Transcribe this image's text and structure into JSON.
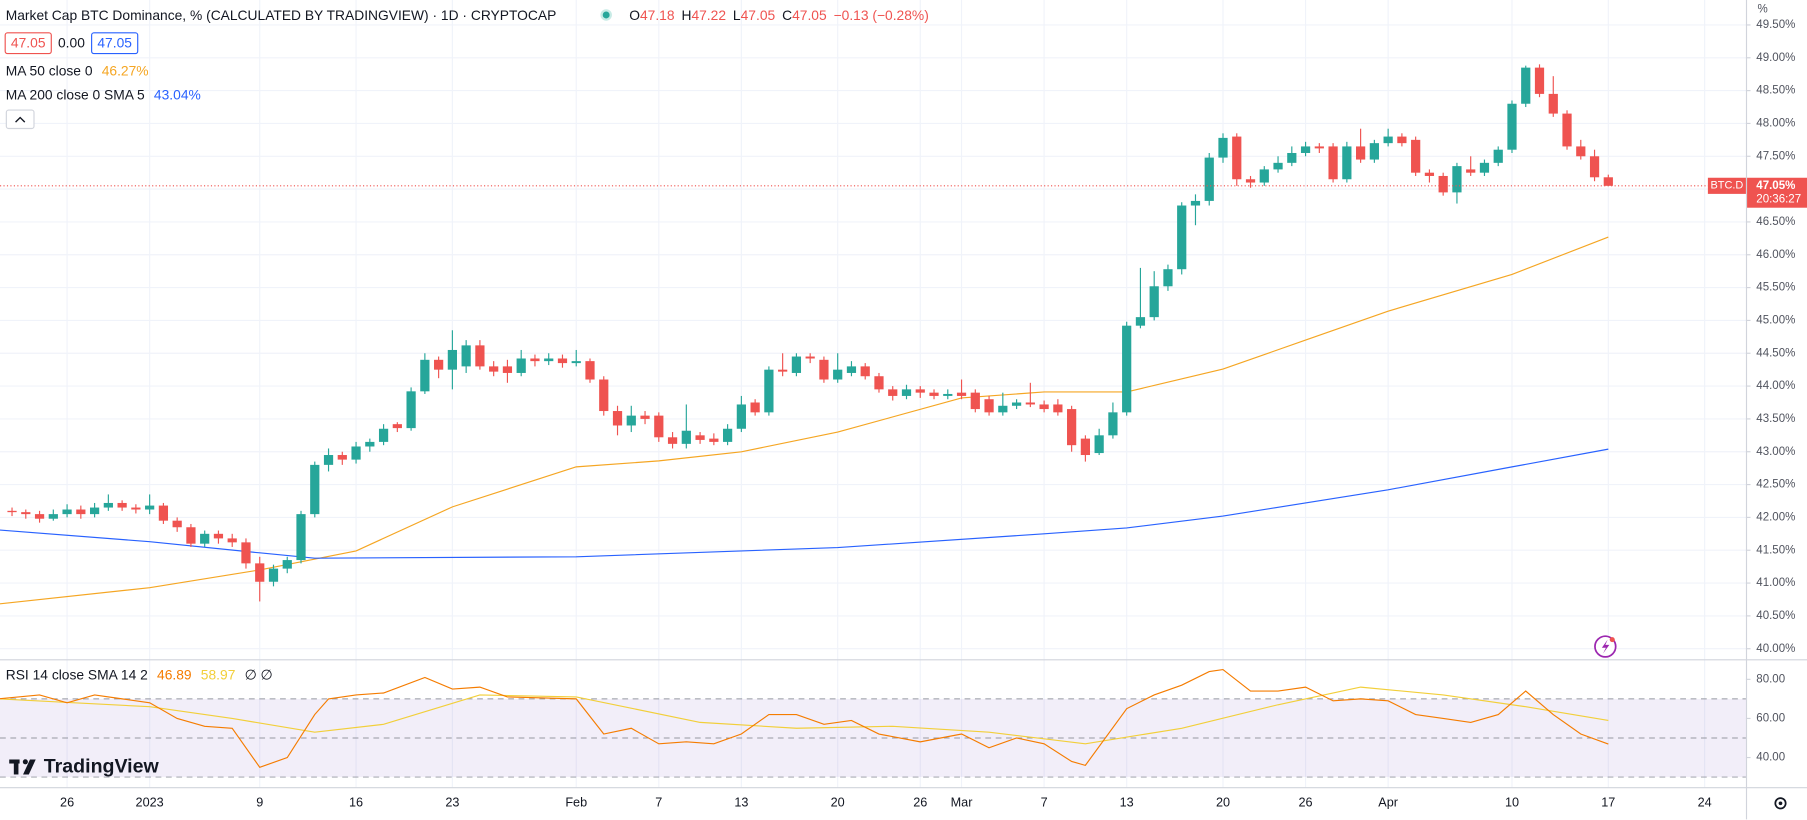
{
  "header": {
    "title": "Market Cap BTC Dominance, % (CALCULATED BY TRADINGVIEW) · 1D · CRYPTOCAP",
    "ohlc": [
      {
        "key": "O",
        "value": "47.18"
      },
      {
        "key": "H",
        "value": "47.22"
      },
      {
        "key": "L",
        "value": "47.05"
      },
      {
        "key": "C",
        "value": "47.05"
      }
    ],
    "change": "−0.13 (−0.28%)",
    "boxes": [
      "47.05",
      "0.00",
      "47.05"
    ],
    "brand": "TradingView"
  },
  "chart_data": [
    {
      "type": "candlestick",
      "name": "BTC.D",
      "up_color": "#26a69a",
      "down_color": "#ef5350",
      "x": [
        "2022-12-22",
        "2022-12-23",
        "2022-12-24",
        "2022-12-25",
        "2022-12-26",
        "2022-12-27",
        "2022-12-28",
        "2022-12-29",
        "2022-12-30",
        "2022-12-31",
        "2023-01-01",
        "2023-01-02",
        "2023-01-03",
        "2023-01-04",
        "2023-01-05",
        "2023-01-06",
        "2023-01-07",
        "2023-01-08",
        "2023-01-09",
        "2023-01-10",
        "2023-01-11",
        "2023-01-12",
        "2023-01-13",
        "2023-01-14",
        "2023-01-15",
        "2023-01-16",
        "2023-01-17",
        "2023-01-18",
        "2023-01-19",
        "2023-01-20",
        "2023-01-21",
        "2023-01-22",
        "2023-01-23",
        "2023-01-24",
        "2023-01-25",
        "2023-01-26",
        "2023-01-27",
        "2023-01-28",
        "2023-01-29",
        "2023-01-30",
        "2023-01-31",
        "2023-02-01",
        "2023-02-02",
        "2023-02-03",
        "2023-02-04",
        "2023-02-05",
        "2023-02-06",
        "2023-02-07",
        "2023-02-08",
        "2023-02-09",
        "2023-02-10",
        "2023-02-11",
        "2023-02-12",
        "2023-02-13",
        "2023-02-14",
        "2023-02-15",
        "2023-02-16",
        "2023-02-17",
        "2023-02-18",
        "2023-02-19",
        "2023-02-20",
        "2023-02-21",
        "2023-02-22",
        "2023-02-23",
        "2023-02-24",
        "2023-02-25",
        "2023-02-26",
        "2023-02-27",
        "2023-02-28",
        "2023-03-01",
        "2023-03-02",
        "2023-03-03",
        "2023-03-04",
        "2023-03-05",
        "2023-03-06",
        "2023-03-07",
        "2023-03-08",
        "2023-03-09",
        "2023-03-10",
        "2023-03-11",
        "2023-03-12",
        "2023-03-13",
        "2023-03-14",
        "2023-03-15",
        "2023-03-16",
        "2023-03-17",
        "2023-03-18",
        "2023-03-19",
        "2023-03-20",
        "2023-03-21",
        "2023-03-22",
        "2023-03-23",
        "2023-03-24",
        "2023-03-25",
        "2023-03-26",
        "2023-03-27",
        "2023-03-28",
        "2023-03-29",
        "2023-03-30",
        "2023-03-31",
        "2023-04-01",
        "2023-04-02",
        "2023-04-03",
        "2023-04-04",
        "2023-04-05",
        "2023-04-06",
        "2023-04-07",
        "2023-04-08",
        "2023-04-09",
        "2023-04-10",
        "2023-04-11",
        "2023-04-12",
        "2023-04-13",
        "2023-04-14",
        "2023-04-15",
        "2023-04-16",
        "2023-04-17"
      ],
      "open": [
        42.1,
        42.08,
        42.05,
        41.98,
        42.05,
        42.12,
        42.05,
        42.15,
        42.22,
        42.15,
        42.12,
        42.18,
        41.95,
        41.85,
        41.6,
        41.75,
        41.68,
        41.62,
        41.3,
        41.02,
        41.22,
        41.35,
        42.05,
        42.8,
        42.95,
        42.88,
        43.08,
        43.15,
        43.42,
        43.36,
        43.92,
        44.4,
        44.25,
        44.3,
        44.62,
        44.3,
        44.3,
        44.2,
        44.42,
        44.38,
        44.42,
        44.35,
        44.38,
        44.1,
        43.62,
        43.4,
        43.55,
        43.55,
        43.22,
        43.12,
        43.25,
        43.2,
        43.15,
        43.35,
        43.75,
        43.6,
        44.25,
        44.2,
        44.45,
        44.4,
        44.1,
        44.2,
        44.3,
        44.15,
        43.95,
        43.85,
        43.95,
        43.9,
        43.85,
        43.9,
        43.9,
        43.8,
        43.6,
        43.7,
        43.75,
        43.72,
        43.72,
        43.65,
        43.2,
        42.98,
        43.25,
        43.6,
        44.92,
        45.05,
        45.52,
        45.78,
        46.75,
        46.82,
        47.48,
        47.8,
        47.15,
        47.1,
        47.3,
        47.4,
        47.55,
        47.65,
        47.65,
        47.15,
        47.65,
        47.45,
        47.7,
        47.8,
        47.75,
        47.25,
        47.2,
        46.95,
        47.3,
        47.25,
        47.4,
        47.6,
        48.3,
        48.85,
        48.45,
        48.15,
        47.65,
        47.5,
        47.18
      ],
      "high": [
        42.15,
        42.12,
        42.1,
        42.12,
        42.2,
        42.18,
        42.22,
        42.35,
        42.26,
        42.2,
        42.35,
        42.22,
        42.0,
        41.9,
        41.8,
        41.8,
        41.75,
        41.68,
        41.4,
        41.28,
        41.4,
        42.1,
        42.85,
        43.05,
        43.0,
        43.15,
        43.2,
        43.42,
        43.45,
        43.98,
        44.5,
        44.45,
        44.85,
        44.7,
        44.7,
        44.38,
        44.4,
        44.55,
        44.48,
        44.5,
        44.48,
        44.55,
        44.42,
        44.15,
        43.7,
        43.7,
        43.62,
        43.6,
        43.3,
        43.72,
        43.3,
        43.28,
        43.42,
        43.85,
        43.8,
        44.3,
        44.5,
        44.5,
        44.5,
        44.45,
        44.5,
        44.38,
        44.35,
        44.2,
        44.0,
        44.02,
        44.0,
        43.95,
        43.95,
        44.1,
        43.95,
        43.85,
        43.9,
        43.8,
        44.05,
        43.78,
        43.8,
        43.7,
        43.25,
        43.35,
        43.75,
        44.98,
        45.8,
        45.75,
        45.85,
        46.8,
        46.92,
        47.55,
        47.85,
        47.85,
        47.2,
        47.35,
        47.5,
        47.65,
        47.72,
        47.7,
        47.7,
        47.72,
        47.92,
        47.75,
        47.92,
        47.85,
        47.8,
        47.3,
        47.25,
        47.4,
        47.5,
        47.45,
        47.65,
        48.35,
        48.88,
        48.9,
        48.72,
        48.2,
        47.75,
        47.6,
        47.22
      ],
      "low": [
        42.02,
        41.98,
        41.92,
        41.95,
        42.0,
        41.98,
        42.0,
        42.1,
        42.1,
        42.06,
        42.05,
        41.9,
        41.78,
        41.55,
        41.55,
        41.6,
        41.55,
        41.22,
        40.72,
        40.95,
        41.15,
        41.3,
        42.0,
        42.7,
        42.8,
        42.82,
        43.0,
        43.1,
        43.3,
        43.32,
        43.88,
        44.12,
        43.95,
        44.2,
        44.25,
        44.15,
        44.05,
        44.15,
        44.3,
        44.32,
        44.28,
        44.3,
        44.05,
        43.55,
        43.25,
        43.3,
        43.42,
        43.15,
        43.05,
        43.05,
        43.12,
        43.1,
        43.1,
        43.3,
        43.55,
        43.55,
        44.15,
        44.15,
        44.35,
        44.05,
        44.05,
        44.15,
        44.1,
        43.9,
        43.78,
        43.8,
        43.82,
        43.8,
        43.8,
        43.8,
        43.6,
        43.55,
        43.55,
        43.65,
        43.68,
        43.6,
        43.55,
        43.0,
        42.85,
        42.95,
        43.2,
        43.55,
        44.88,
        45.0,
        45.45,
        45.7,
        46.45,
        46.75,
        47.4,
        47.05,
        47.02,
        47.05,
        47.25,
        47.35,
        47.5,
        47.55,
        47.1,
        47.1,
        47.4,
        47.4,
        47.65,
        47.65,
        47.2,
        47.1,
        46.9,
        46.78,
        47.2,
        47.2,
        47.35,
        47.55,
        48.25,
        48.4,
        48.1,
        47.6,
        47.45,
        47.12,
        47.05
      ],
      "close": [
        42.08,
        42.05,
        41.98,
        42.05,
        42.12,
        42.05,
        42.15,
        42.22,
        42.15,
        42.12,
        42.18,
        41.95,
        41.85,
        41.6,
        41.75,
        41.68,
        41.62,
        41.3,
        41.02,
        41.22,
        41.35,
        42.05,
        42.8,
        42.95,
        42.88,
        43.08,
        43.15,
        43.35,
        43.36,
        43.92,
        44.4,
        44.25,
        44.55,
        44.62,
        44.3,
        44.22,
        44.2,
        44.42,
        44.38,
        44.42,
        44.35,
        44.38,
        44.1,
        43.62,
        43.4,
        43.55,
        43.5,
        43.22,
        43.12,
        43.32,
        43.18,
        43.15,
        43.35,
        43.72,
        43.6,
        44.25,
        44.22,
        44.45,
        44.42,
        44.1,
        44.25,
        44.3,
        44.15,
        43.95,
        43.85,
        43.95,
        43.9,
        43.85,
        43.88,
        43.85,
        43.65,
        43.6,
        43.7,
        43.75,
        43.72,
        43.65,
        43.6,
        43.1,
        42.95,
        43.25,
        43.6,
        44.92,
        45.05,
        45.52,
        45.78,
        46.75,
        46.82,
        47.48,
        47.78,
        47.15,
        47.1,
        47.3,
        47.4,
        47.55,
        47.65,
        47.62,
        47.15,
        47.65,
        47.45,
        47.7,
        47.8,
        47.7,
        47.25,
        47.2,
        46.95,
        47.35,
        47.25,
        47.4,
        47.6,
        48.3,
        48.85,
        48.45,
        48.15,
        47.65,
        47.5,
        47.18,
        47.05
      ],
      "lines": [
        {
          "name": "MA 50 close 0",
          "last_label": "46.27%",
          "color": "#f5a623",
          "x": [
            "2022-12-21",
            "2023-01-01",
            "2023-01-09",
            "2023-01-16",
            "2023-01-23",
            "2023-02-01",
            "2023-02-07",
            "2023-02-13",
            "2023-02-20",
            "2023-03-01",
            "2023-03-07",
            "2023-03-13",
            "2023-03-20",
            "2023-03-26",
            "2023-04-01",
            "2023-04-10",
            "2023-04-17"
          ],
          "values": [
            40.68,
            40.93,
            41.2,
            41.49,
            42.16,
            42.77,
            42.86,
            43.0,
            43.3,
            43.82,
            43.91,
            43.91,
            44.26,
            44.7,
            45.14,
            45.7,
            46.27
          ]
        },
        {
          "name": "MA 200 close 0 SMA 5",
          "last_label": "43.04%",
          "color": "#2962ff",
          "x": [
            "2022-12-21",
            "2023-01-01",
            "2023-01-09",
            "2023-01-13",
            "2023-02-01",
            "2023-02-20",
            "2023-03-07",
            "2023-03-13",
            "2023-03-20",
            "2023-04-01",
            "2023-04-10",
            "2023-04-17"
          ],
          "values": [
            41.81,
            41.63,
            41.46,
            41.38,
            41.4,
            41.54,
            41.75,
            41.84,
            42.02,
            42.42,
            42.77,
            43.04
          ]
        }
      ],
      "last_price": {
        "value": 47.05,
        "label": "47.05%",
        "countdown": "20:36:27"
      },
      "y_unit": "%",
      "xlim": [
        "2022-12-21",
        "2023-04-27"
      ],
      "xticks": [
        {
          "value": "2022-12-26",
          "label": "26"
        },
        {
          "value": "2023-01-01",
          "label": "2023"
        },
        {
          "value": "2023-01-09",
          "label": "9"
        },
        {
          "value": "2023-01-16",
          "label": "16"
        },
        {
          "value": "2023-01-23",
          "label": "23"
        },
        {
          "value": "2023-02-01",
          "label": "Feb"
        },
        {
          "value": "2023-02-07",
          "label": "7"
        },
        {
          "value": "2023-02-13",
          "label": "13"
        },
        {
          "value": "2023-02-20",
          "label": "20"
        },
        {
          "value": "2023-02-26",
          "label": "26"
        },
        {
          "value": "2023-03-01",
          "label": "Mar"
        },
        {
          "value": "2023-03-07",
          "label": "7"
        },
        {
          "value": "2023-03-13",
          "label": "13"
        },
        {
          "value": "2023-03-20",
          "label": "20"
        },
        {
          "value": "2023-03-26",
          "label": "26"
        },
        {
          "value": "2023-04-01",
          "label": "Apr"
        },
        {
          "value": "2023-04-10",
          "label": "10"
        },
        {
          "value": "2023-04-17",
          "label": "17"
        },
        {
          "value": "2023-04-24",
          "label": "24"
        }
      ],
      "ylim": [
        39.84,
        49.88
      ],
      "yticks": [
        {
          "value": 40,
          "label": "40.00%"
        },
        {
          "value": 40.5,
          "label": "40.50%"
        },
        {
          "value": 41,
          "label": "41.00%"
        },
        {
          "value": 41.5,
          "label": "41.50%"
        },
        {
          "value": 42,
          "label": "42.00%"
        },
        {
          "value": 42.5,
          "label": "42.50%"
        },
        {
          "value": 43,
          "label": "43.00%"
        },
        {
          "value": 43.5,
          "label": "43.50%"
        },
        {
          "value": 44,
          "label": "44.00%"
        },
        {
          "value": 44.5,
          "label": "44.50%"
        },
        {
          "value": 45,
          "label": "45.00%"
        },
        {
          "value": 45.5,
          "label": "45.50%"
        },
        {
          "value": 46,
          "label": "46.00%"
        },
        {
          "value": 46.5,
          "label": "46.50%"
        },
        {
          "value": 47,
          "label": "47.00%"
        },
        {
          "value": 47.5,
          "label": "47.50%"
        },
        {
          "value": 48,
          "label": "48.00%"
        },
        {
          "value": 48.5,
          "label": "48.50%"
        },
        {
          "value": 49,
          "label": "49.00%"
        },
        {
          "value": 49.5,
          "label": "49.50%"
        }
      ],
      "grid": true
    },
    {
      "type": "line",
      "title": "RSI 14 close SMA 14 2",
      "extra": "∅ ∅",
      "series": [
        {
          "name": "RSI",
          "color": "#f57c00",
          "last_label": "46.89",
          "x": [
            "2022-12-21",
            "2022-12-24",
            "2022-12-26",
            "2022-12-28",
            "2022-12-30",
            "2023-01-01",
            "2023-01-03",
            "2023-01-05",
            "2023-01-07",
            "2023-01-09",
            "2023-01-11",
            "2023-01-13",
            "2023-01-14",
            "2023-01-16",
            "2023-01-18",
            "2023-01-21",
            "2023-01-23",
            "2023-01-25",
            "2023-01-27",
            "2023-02-01",
            "2023-02-03",
            "2023-02-05",
            "2023-02-07",
            "2023-02-09",
            "2023-02-11",
            "2023-02-13",
            "2023-02-15",
            "2023-02-17",
            "2023-02-19",
            "2023-02-21",
            "2023-02-23",
            "2023-02-26",
            "2023-03-01",
            "2023-03-03",
            "2023-03-05",
            "2023-03-07",
            "2023-03-09",
            "2023-03-10",
            "2023-03-13",
            "2023-03-15",
            "2023-03-17",
            "2023-03-19",
            "2023-03-20",
            "2023-03-22",
            "2023-03-24",
            "2023-03-26",
            "2023-03-28",
            "2023-03-30",
            "2023-04-01",
            "2023-04-03",
            "2023-04-05",
            "2023-04-07",
            "2023-04-09",
            "2023-04-11",
            "2023-04-13",
            "2023-04-15",
            "2023-04-17"
          ],
          "values": [
            70,
            72,
            68,
            72,
            70,
            68,
            60,
            56,
            55,
            35,
            40,
            62,
            70,
            72,
            73,
            81,
            75,
            76,
            71,
            70,
            52,
            55,
            47,
            48,
            47,
            52,
            62,
            62,
            57,
            59,
            52,
            48,
            52,
            45,
            50,
            47,
            38,
            36,
            65,
            72,
            77,
            84,
            85,
            74,
            74,
            76,
            69,
            70,
            69,
            62,
            60,
            58,
            62,
            74,
            62,
            52,
            46.89
          ]
        },
        {
          "name": "SMA",
          "color": "#f2cf3a",
          "last_label": "58.97",
          "x": [
            "2022-12-21",
            "2023-01-01",
            "2023-01-07",
            "2023-01-13",
            "2023-01-18",
            "2023-01-25",
            "2023-02-01",
            "2023-02-10",
            "2023-02-17",
            "2023-02-24",
            "2023-03-03",
            "2023-03-10",
            "2023-03-17",
            "2023-03-24",
            "2023-03-30",
            "2023-04-05",
            "2023-04-11",
            "2023-04-17"
          ],
          "values": [
            70,
            66,
            60,
            53,
            57,
            72,
            71,
            58,
            55,
            56,
            53,
            47,
            55,
            67,
            76,
            72,
            66,
            58.97
          ]
        }
      ],
      "band": [
        30,
        70
      ],
      "levels": [
        70,
        50,
        30
      ],
      "xlim": [
        "2022-12-21",
        "2023-04-27"
      ],
      "ylim": [
        24.85,
        89.7
      ],
      "yticks": [
        {
          "value": 40,
          "label": "40.00"
        },
        {
          "value": 60,
          "label": "60.00"
        },
        {
          "value": 80,
          "label": "80.00"
        }
      ]
    }
  ]
}
